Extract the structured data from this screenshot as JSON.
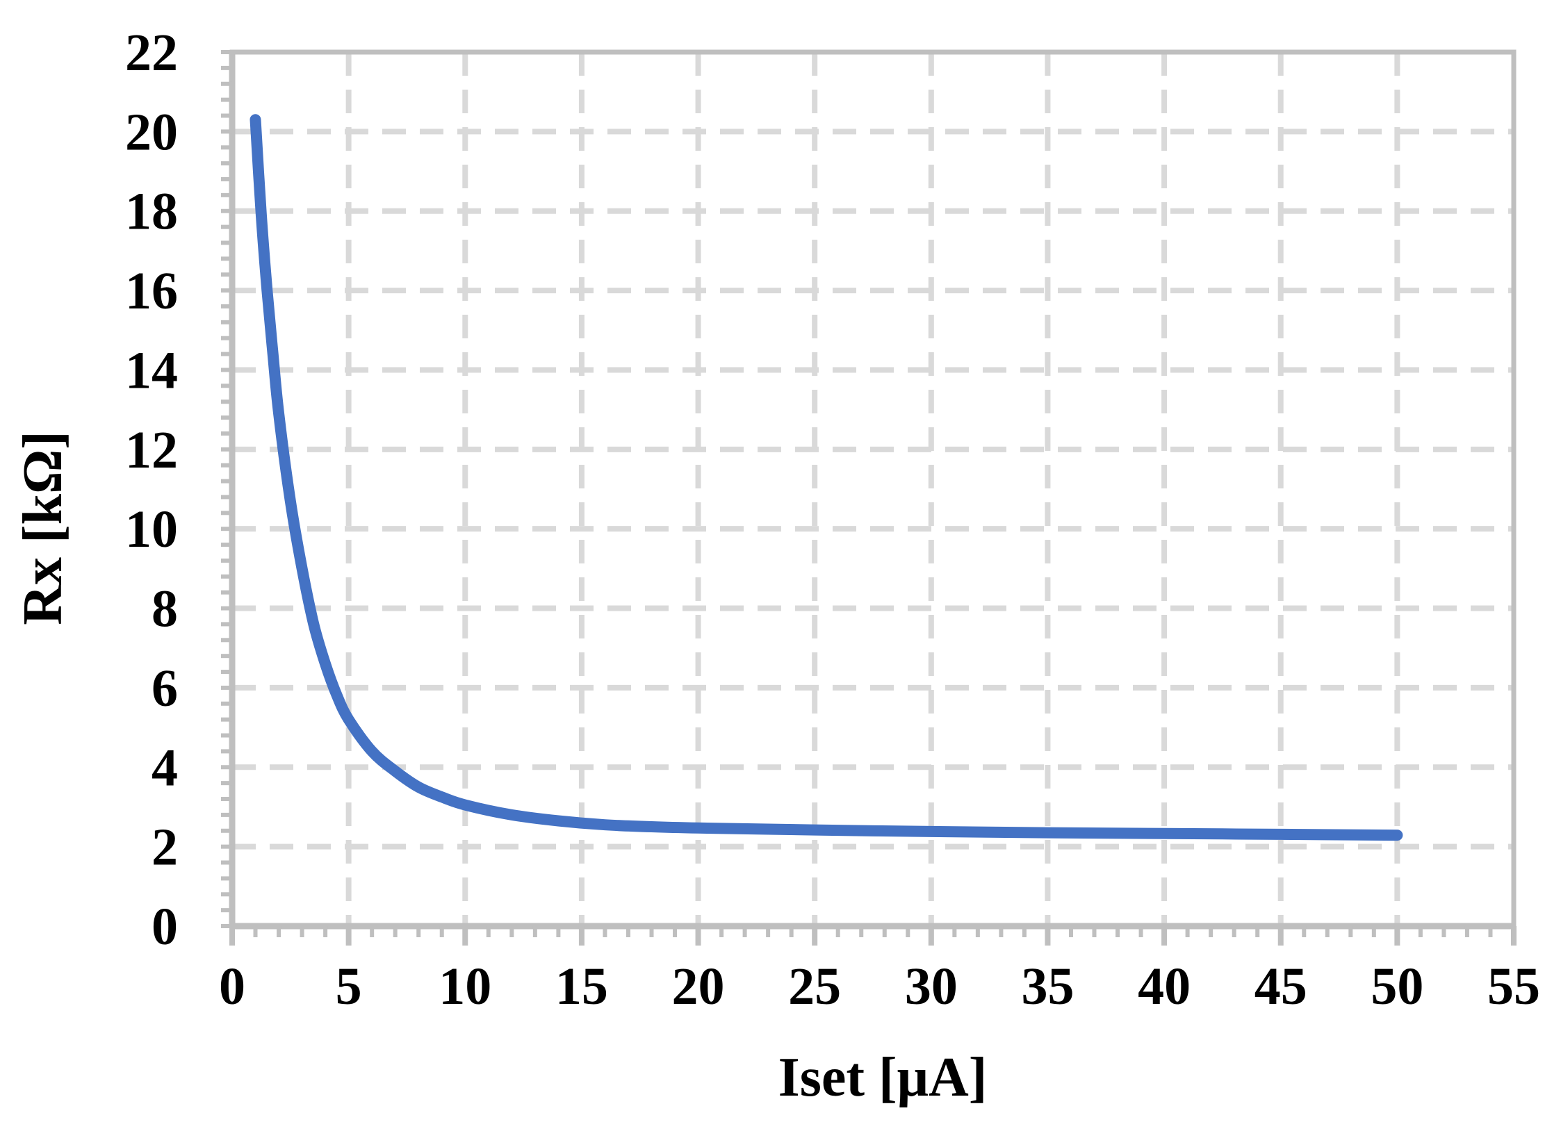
{
  "chart_data": {
    "type": "line",
    "title": "",
    "xlabel": "Iset [μA]",
    "ylabel": "Rx [kΩ]",
    "xlim": [
      0,
      55
    ],
    "ylim": [
      0,
      22
    ],
    "xticks": [
      0,
      5,
      10,
      15,
      20,
      25,
      30,
      35,
      40,
      45,
      50,
      55
    ],
    "yticks": [
      0,
      2,
      4,
      6,
      8,
      10,
      12,
      14,
      16,
      18,
      20,
      22
    ],
    "xtick_labels": [
      "0",
      "5",
      "10",
      "15",
      "20",
      "25",
      "30",
      "35",
      "40",
      "45",
      "50",
      "55"
    ],
    "ytick_labels": [
      "0",
      "2",
      "4",
      "6",
      "8",
      "10",
      "12",
      "14",
      "16",
      "18",
      "20",
      "22"
    ],
    "grid": true,
    "series": [
      {
        "color": "#4472C4",
        "x": [
          1,
          1.25,
          1.5,
          1.75,
          2,
          2.5,
          3,
          3.5,
          4,
          4.5,
          5,
          6,
          7,
          8,
          9,
          10,
          12,
          14,
          16,
          18,
          20,
          25,
          30,
          35,
          40,
          45,
          50
        ],
        "y": [
          20.3,
          17.9,
          16.0,
          14.4,
          12.9,
          10.7,
          9.0,
          7.6,
          6.6,
          5.8,
          5.2,
          4.4,
          3.9,
          3.5,
          3.25,
          3.05,
          2.8,
          2.65,
          2.55,
          2.5,
          2.47,
          2.42,
          2.38,
          2.35,
          2.33,
          2.31,
          2.29
        ]
      }
    ]
  },
  "colors": {
    "grid": "#D9D9D9",
    "axis": "#BFBFBF",
    "line": "#4472C4"
  }
}
